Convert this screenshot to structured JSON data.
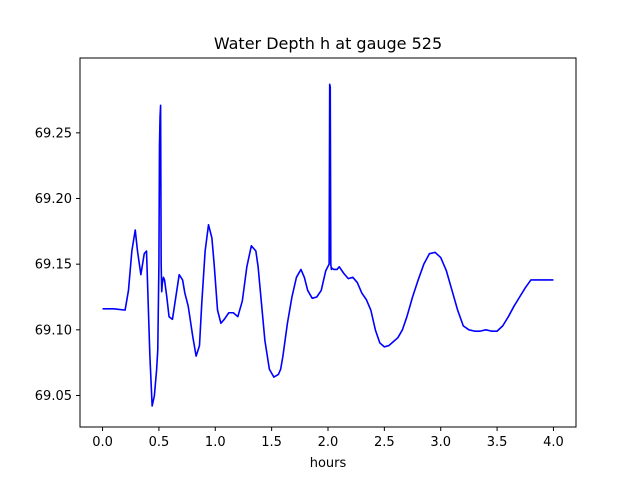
{
  "chart_data": {
    "type": "line",
    "title": "Water Depth h at gauge 525",
    "xlabel": "hours",
    "ylabel": "",
    "xlim": [
      -0.2,
      4.2
    ],
    "ylim": [
      69.026,
      69.307
    ],
    "x_ticks": [
      0.0,
      0.5,
      1.0,
      1.5,
      2.0,
      2.5,
      3.0,
      3.5,
      4.0
    ],
    "x_tick_labels": [
      "0.0",
      "0.5",
      "1.0",
      "1.5",
      "2.0",
      "2.5",
      "3.0",
      "3.5",
      "4.0"
    ],
    "y_ticks": [
      69.05,
      69.1,
      69.15,
      69.2,
      69.25
    ],
    "y_tick_labels": [
      "69.05",
      "69.10",
      "69.15",
      "69.20",
      "69.25"
    ],
    "grid": false,
    "line_color": "#0000ff",
    "series": [
      {
        "x": [
          0.0,
          0.1,
          0.2,
          0.23,
          0.26,
          0.29,
          0.31,
          0.34,
          0.37,
          0.39,
          0.42,
          0.44,
          0.46,
          0.48,
          0.49,
          0.5,
          0.505,
          0.51,
          0.515,
          0.52,
          0.525,
          0.53,
          0.54,
          0.55,
          0.57,
          0.59,
          0.62,
          0.65,
          0.68,
          0.71,
          0.73,
          0.76,
          0.8,
          0.83,
          0.86,
          0.88,
          0.91,
          0.94,
          0.97,
          0.99,
          1.02,
          1.05,
          1.08,
          1.12,
          1.16,
          1.2,
          1.24,
          1.28,
          1.32,
          1.36,
          1.38,
          1.41,
          1.44,
          1.48,
          1.52,
          1.56,
          1.58,
          1.6,
          1.64,
          1.68,
          1.72,
          1.76,
          1.79,
          1.82,
          1.86,
          1.9,
          1.94,
          1.98,
          2.01,
          2.015,
          2.02,
          2.025,
          2.03,
          2.035,
          2.05,
          2.08,
          2.1,
          2.14,
          2.18,
          2.22,
          2.26,
          2.3,
          2.34,
          2.38,
          2.42,
          2.46,
          2.5,
          2.54,
          2.58,
          2.62,
          2.66,
          2.7,
          2.75,
          2.8,
          2.85,
          2.9,
          2.95,
          3.0,
          3.05,
          3.1,
          3.15,
          3.2,
          3.25,
          3.3,
          3.35,
          3.4,
          3.45,
          3.5,
          3.55,
          3.6,
          3.65,
          3.7,
          3.75,
          3.8,
          3.85,
          3.9,
          3.95,
          4.0
        ],
        "y": [
          69.116,
          69.116,
          69.115,
          69.13,
          69.16,
          69.176,
          69.16,
          69.142,
          69.158,
          69.16,
          69.08,
          69.042,
          69.05,
          69.07,
          69.085,
          69.15,
          69.24,
          69.262,
          69.271,
          69.15,
          69.129,
          69.135,
          69.14,
          69.138,
          69.125,
          69.11,
          69.108,
          69.125,
          69.142,
          69.138,
          69.128,
          69.118,
          69.095,
          69.08,
          69.088,
          69.12,
          69.16,
          69.18,
          69.17,
          69.15,
          69.115,
          69.105,
          69.108,
          69.113,
          69.113,
          69.11,
          69.122,
          69.148,
          69.164,
          69.16,
          69.148,
          69.12,
          69.092,
          69.07,
          69.064,
          69.066,
          69.07,
          69.08,
          69.105,
          69.125,
          69.14,
          69.146,
          69.14,
          69.13,
          69.124,
          69.125,
          69.13,
          69.145,
          69.15,
          69.287,
          69.285,
          69.15,
          69.146,
          69.147,
          69.146,
          69.146,
          69.148,
          69.143,
          69.139,
          69.14,
          69.136,
          69.128,
          69.123,
          69.115,
          69.1,
          69.09,
          69.087,
          69.088,
          69.091,
          69.094,
          69.1,
          69.11,
          69.125,
          69.138,
          69.15,
          69.158,
          69.159,
          69.155,
          69.145,
          69.13,
          69.115,
          69.103,
          69.1,
          69.099,
          69.099,
          69.1,
          69.099,
          69.099,
          69.103,
          69.11,
          69.118,
          69.125,
          69.132,
          69.138,
          69.138,
          69.138,
          69.138,
          69.138
        ]
      }
    ]
  }
}
